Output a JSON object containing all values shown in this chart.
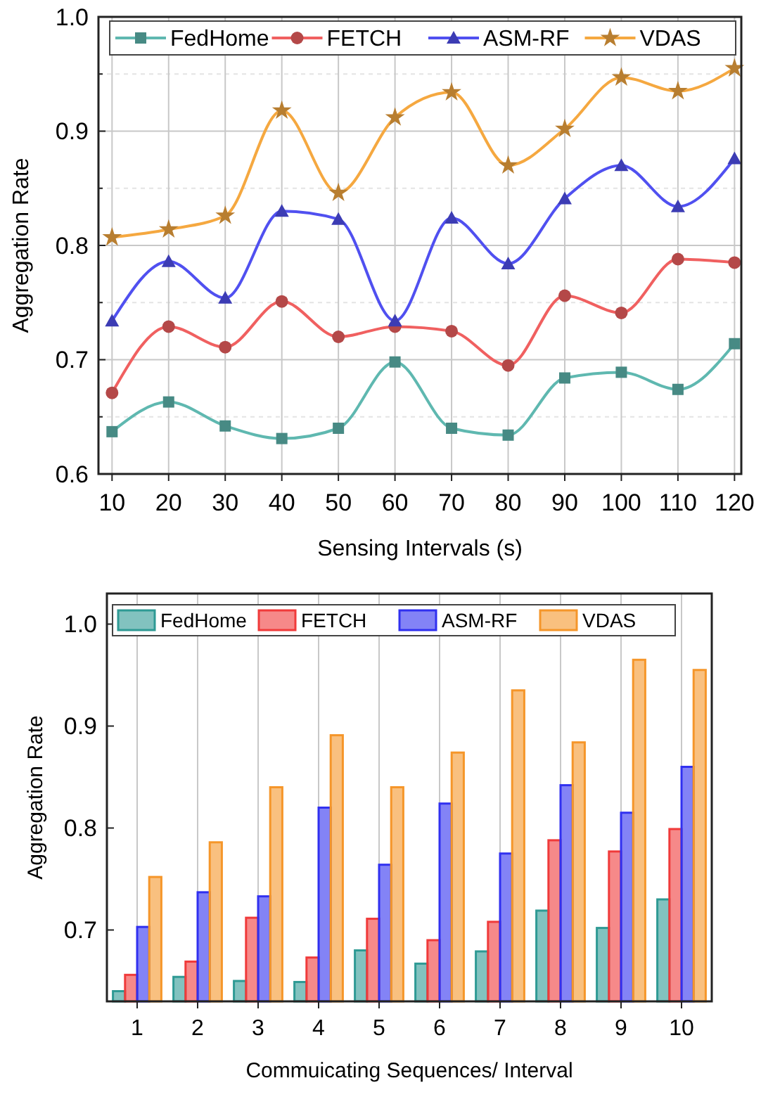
{
  "chart_data": [
    {
      "type": "line",
      "xlabel": "Sensing Intervals (s)",
      "ylabel": "Aggregation Rate",
      "x": [
        10,
        20,
        30,
        40,
        50,
        60,
        70,
        80,
        90,
        100,
        110,
        120
      ],
      "xlim": [
        7.6,
        121.2
      ],
      "xticks": [
        10,
        20,
        30,
        40,
        50,
        60,
        70,
        80,
        90,
        100,
        110,
        120
      ],
      "ylim": [
        0.6,
        1.0
      ],
      "yticks": [
        {
          "value": 0.6,
          "label": "0.6"
        },
        {
          "value": 0.65,
          "label": null
        },
        {
          "value": 0.7,
          "label": "0.7"
        },
        {
          "value": 0.75,
          "label": null
        },
        {
          "value": 0.8,
          "label": "0.8"
        },
        {
          "value": 0.85,
          "label": null
        },
        {
          "value": 0.9,
          "label": "0.9"
        },
        {
          "value": 0.95,
          "label": null
        },
        {
          "value": 1.0,
          "label": "1.0"
        }
      ],
      "grid": true,
      "legend": "top",
      "line_style": "solid",
      "series": [
        {
          "name": "FedHome",
          "color": "#5fb8b0",
          "marker": "square",
          "values": [
            0.637,
            0.663,
            0.642,
            0.631,
            0.64,
            0.698,
            0.64,
            0.634,
            0.684,
            0.689,
            0.674,
            0.714
          ]
        },
        {
          "name": "FETCH",
          "color": "#f06060",
          "marker": "circle",
          "values": [
            0.671,
            0.729,
            0.711,
            0.751,
            0.72,
            0.729,
            0.725,
            0.695,
            0.756,
            0.741,
            0.788,
            0.785
          ]
        },
        {
          "name": "ASM-RF",
          "color": "#5050f0",
          "marker": "triangle",
          "values": [
            0.734,
            0.786,
            0.754,
            0.83,
            0.823,
            0.734,
            0.824,
            0.784,
            0.841,
            0.87,
            0.834,
            0.876
          ]
        },
        {
          "name": "VDAS",
          "color": "#f5a840",
          "marker": "star",
          "values": [
            0.807,
            0.814,
            0.826,
            0.918,
            0.846,
            0.912,
            0.934,
            0.87,
            0.902,
            0.947,
            0.935,
            0.955
          ]
        }
      ]
    },
    {
      "type": "bar",
      "xlabel": "Commuicating Sequences/ Interval",
      "ylabel": "Aggregation Rate",
      "categories": [
        "1",
        "2",
        "3",
        "4",
        "5",
        "6",
        "7",
        "8",
        "9",
        "10"
      ],
      "ylim": [
        0.63,
        1.03
      ],
      "yticks": [
        {
          "value": 0.7,
          "label": "0.7"
        },
        {
          "value": 0.8,
          "label": "0.8"
        },
        {
          "value": 0.9,
          "label": "0.9"
        },
        {
          "value": 1.0,
          "label": "1.0"
        }
      ],
      "grid": "x",
      "legend": "top",
      "series": [
        {
          "name": "FedHome",
          "color": "#2e9a94",
          "values": [
            0.64,
            0.654,
            0.65,
            0.649,
            0.68,
            0.667,
            0.679,
            0.719,
            0.702,
            0.73
          ]
        },
        {
          "name": "FETCH",
          "color": "#f03a3a",
          "values": [
            0.656,
            0.669,
            0.712,
            0.673,
            0.711,
            0.69,
            0.708,
            0.788,
            0.777,
            0.799
          ]
        },
        {
          "name": "ASM-RF",
          "color": "#3030f0",
          "values": [
            0.703,
            0.737,
            0.733,
            0.82,
            0.764,
            0.824,
            0.775,
            0.842,
            0.815,
            0.86
          ]
        },
        {
          "name": "VDAS",
          "color": "#f5962a",
          "values": [
            0.752,
            0.786,
            0.84,
            0.891,
            0.84,
            0.874,
            0.935,
            0.884,
            0.965,
            0.955
          ]
        }
      ]
    }
  ]
}
